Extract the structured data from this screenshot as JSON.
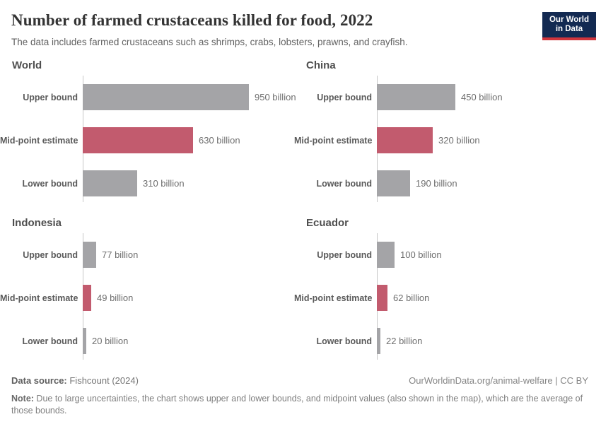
{
  "header": {
    "title": "Number of farmed crustaceans killed for food, 2022",
    "subtitle": "The data includes farmed crustaceans such as shrimps, crabs, lobsters, prawns, and crayfish.",
    "logo": {
      "line1": "Our World",
      "line2": "in Data"
    }
  },
  "chart_data": {
    "type": "bar",
    "orientation": "horizontal",
    "unit": "billion",
    "categories": [
      "Upper bound",
      "Mid-point estimate",
      "Lower bound"
    ],
    "shared_xlim": [
      0,
      950
    ],
    "grid": "off",
    "legend": "none",
    "colors": {
      "bound": "#a4a4a7",
      "midpoint": "#c25b6e"
    },
    "panels": [
      {
        "title": "World",
        "values": [
          950,
          630,
          310
        ],
        "value_labels": [
          "950 billion",
          "630 billion",
          "310 billion"
        ]
      },
      {
        "title": "China",
        "values": [
          450,
          320,
          190
        ],
        "value_labels": [
          "450 billion",
          "320 billion",
          "190 billion"
        ]
      },
      {
        "title": "Indonesia",
        "values": [
          77,
          49,
          20
        ],
        "value_labels": [
          "77 billion",
          "49 billion",
          "20 billion"
        ]
      },
      {
        "title": "Ecuador",
        "values": [
          100,
          62,
          22
        ],
        "value_labels": [
          "100 billion",
          "62 billion",
          "22 billion"
        ]
      }
    ]
  },
  "footer": {
    "source_label": "Data source:",
    "source_value": " Fishcount (2024)",
    "attribution": "OurWorldinData.org/animal-welfare | CC BY",
    "note_label": "Note:",
    "note_text": " Due to large uncertainties, the chart shows upper and lower bounds, and midpoint values (also shown in the map), which are the average of those bounds."
  }
}
